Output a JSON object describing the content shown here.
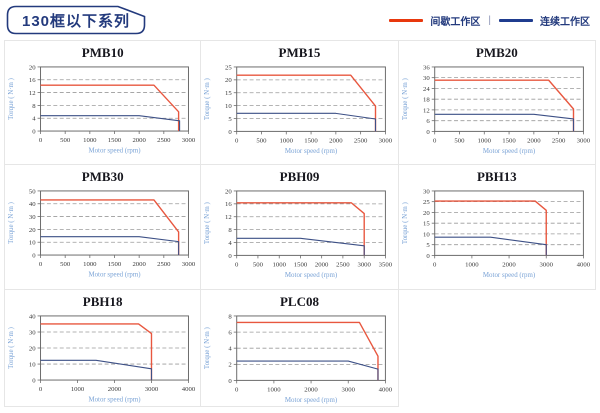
{
  "header": {
    "title": "130框以下系列",
    "separator": "|",
    "legend": [
      {
        "label": "间歇工作区",
        "color": "#e8380d"
      },
      {
        "label": "连续工作区",
        "color": "#1f3c8f"
      }
    ]
  },
  "colors": {
    "intermittent": "#e8573f",
    "continuous": "#3d5086",
    "grid": "#9b9b9b",
    "plot_border": "#6b6b6b",
    "tick_text": "#3a3a3a",
    "axis_label": "#7aa3d6",
    "title_text": "#16161d",
    "header_navy": "#233a7d",
    "cell_border": "#e6e6e6"
  },
  "chart_data": [
    {
      "type": "line",
      "title": "PMB10",
      "xlabel": "Motor speed (rpm)",
      "ylabel": "Torque ( N·m )",
      "xlim": [
        0,
        3000
      ],
      "xstep": 500,
      "ylim": [
        0,
        20
      ],
      "ystep": 4,
      "grid": "dashed-horizontal",
      "legend_position": "none",
      "series": [
        {
          "name": "间歇工作区",
          "color": "intermittent",
          "points": [
            [
              0,
              14.3
            ],
            [
              2300,
              14.3
            ],
            [
              2800,
              6
            ],
            [
              2800,
              0
            ]
          ]
        },
        {
          "name": "连续工作区",
          "color": "continuous",
          "points": [
            [
              0,
              4.8
            ],
            [
              2000,
              4.8
            ],
            [
              2820,
              3.2
            ],
            [
              2820,
              0
            ]
          ]
        }
      ]
    },
    {
      "type": "line",
      "title": "PMB15",
      "xlabel": "Motor speed (rpm)",
      "ylabel": "Torque ( N·m )",
      "xlim": [
        0,
        3000
      ],
      "xstep": 500,
      "ylim": [
        0,
        25
      ],
      "ystep": 5,
      "grid": "dashed-horizontal",
      "legend_position": "none",
      "series": [
        {
          "name": "间歇工作区",
          "color": "intermittent",
          "points": [
            [
              0,
              21.8
            ],
            [
              2300,
              21.8
            ],
            [
              2800,
              9.8
            ],
            [
              2800,
              0
            ]
          ]
        },
        {
          "name": "连续工作区",
          "color": "continuous",
          "points": [
            [
              0,
              7
            ],
            [
              2000,
              7
            ],
            [
              2800,
              4.8
            ],
            [
              2800,
              0
            ]
          ]
        }
      ]
    },
    {
      "type": "line",
      "title": "PMB20",
      "xlabel": "Motor speed (rpm)",
      "ylabel": "Torque ( N·m )",
      "xlim": [
        0,
        3000
      ],
      "xstep": 500,
      "ylim": [
        0,
        36
      ],
      "ystep": 6,
      "grid": "dashed-horizontal",
      "legend_position": "none",
      "series": [
        {
          "name": "间歇工作区",
          "color": "intermittent",
          "points": [
            [
              0,
              28.6
            ],
            [
              2300,
              28.6
            ],
            [
              2800,
              12.5
            ],
            [
              2800,
              0
            ]
          ]
        },
        {
          "name": "连续工作区",
          "color": "continuous",
          "points": [
            [
              0,
              9.5
            ],
            [
              2000,
              9.5
            ],
            [
              2800,
              7
            ],
            [
              2800,
              0
            ]
          ]
        }
      ]
    },
    {
      "type": "line",
      "title": "PMB30",
      "xlabel": "Motor speed (rpm)",
      "ylabel": "Torque ( N·m )",
      "xlim": [
        0,
        3000
      ],
      "xstep": 500,
      "ylim": [
        0,
        50
      ],
      "ystep": 10,
      "grid": "dashed-horizontal",
      "legend_position": "none",
      "series": [
        {
          "name": "间歇工作区",
          "color": "intermittent",
          "points": [
            [
              0,
              43
            ],
            [
              2300,
              43
            ],
            [
              2800,
              18
            ],
            [
              2800,
              0
            ]
          ]
        },
        {
          "name": "连续工作区",
          "color": "continuous",
          "points": [
            [
              0,
              14.3
            ],
            [
              2000,
              14.3
            ],
            [
              2800,
              10.5
            ],
            [
              2800,
              0
            ]
          ]
        }
      ]
    },
    {
      "type": "line",
      "title": "PBH09",
      "xlabel": "Motor speed (rpm)",
      "ylabel": "Torque ( N·m )",
      "xlim": [
        0,
        3500
      ],
      "xstep": 500,
      "ylim": [
        0,
        20
      ],
      "ystep": 4,
      "grid": "dashed-horizontal",
      "legend_position": "none",
      "series": [
        {
          "name": "间歇工作区",
          "color": "intermittent",
          "points": [
            [
              0,
              16.3
            ],
            [
              2700,
              16.3
            ],
            [
              3000,
              13
            ],
            [
              3000,
              0
            ]
          ]
        },
        {
          "name": "连续工作区",
          "color": "continuous",
          "points": [
            [
              0,
              5.3
            ],
            [
              1500,
              5.3
            ],
            [
              3000,
              3
            ],
            [
              3000,
              0
            ]
          ]
        }
      ]
    },
    {
      "type": "line",
      "title": "PBH13",
      "xlabel": "Motor speed (rpm)",
      "ylabel": "Torque ( N·m )",
      "xlim": [
        0,
        4000
      ],
      "xstep": 1000,
      "ylim": [
        0,
        30
      ],
      "ystep": 5,
      "grid": "dashed-horizontal",
      "legend_position": "none",
      "series": [
        {
          "name": "间歇工作区",
          "color": "intermittent",
          "points": [
            [
              0,
              25.3
            ],
            [
              2700,
              25.3
            ],
            [
              3000,
              21
            ],
            [
              3000,
              0
            ]
          ]
        },
        {
          "name": "连续工作区",
          "color": "continuous",
          "points": [
            [
              0,
              8.5
            ],
            [
              1500,
              8.5
            ],
            [
              3000,
              5
            ],
            [
              3000,
              0
            ]
          ]
        }
      ]
    },
    {
      "type": "line",
      "title": "PBH18",
      "xlabel": "Motor speed (rpm)",
      "ylabel": "Torque ( N·m )",
      "xlim": [
        0,
        4000
      ],
      "xstep": 1000,
      "ylim": [
        0,
        40
      ],
      "ystep": 10,
      "grid": "dashed-horizontal",
      "legend_position": "none",
      "series": [
        {
          "name": "间歇工作区",
          "color": "intermittent",
          "points": [
            [
              0,
              35
            ],
            [
              2650,
              35
            ],
            [
              3000,
              29
            ],
            [
              3000,
              0
            ]
          ]
        },
        {
          "name": "连续工作区",
          "color": "continuous",
          "points": [
            [
              0,
              12.3
            ],
            [
              1500,
              12.3
            ],
            [
              3000,
              7
            ],
            [
              3000,
              0
            ]
          ]
        }
      ]
    },
    {
      "type": "line",
      "title": "PLC08",
      "xlabel": "Motor speed (rpm)",
      "ylabel": "Torque ( N·m )",
      "xlim": [
        0,
        4000
      ],
      "xstep": 1000,
      "ylim": [
        0,
        8
      ],
      "ystep": 2,
      "grid": "dashed-horizontal",
      "legend_position": "none",
      "series": [
        {
          "name": "间歇工作区",
          "color": "intermittent",
          "points": [
            [
              0,
              7.2
            ],
            [
              3300,
              7.2
            ],
            [
              3800,
              3
            ],
            [
              3800,
              0
            ]
          ]
        },
        {
          "name": "连续工作区",
          "color": "continuous",
          "points": [
            [
              0,
              2.4
            ],
            [
              3000,
              2.4
            ],
            [
              3800,
              1.4
            ],
            [
              3800,
              0
            ]
          ]
        }
      ]
    }
  ]
}
